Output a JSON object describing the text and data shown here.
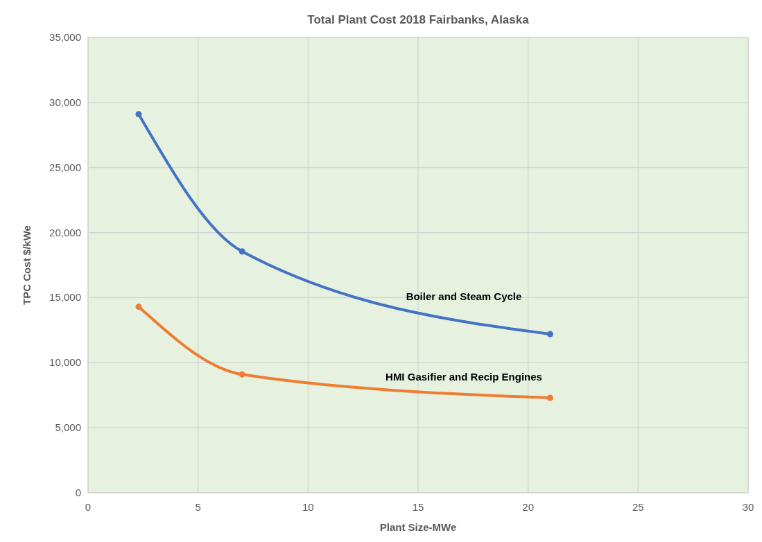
{
  "chart_data": {
    "type": "line",
    "title": "Total Plant Cost 2018 Fairbanks, Alaska",
    "xlabel": "Plant Size-MWe",
    "ylabel": "TPC Cost $/kWe",
    "x": [
      2.3,
      7,
      21
    ],
    "series": [
      {
        "name": "Boiler and Steam Cycle",
        "color": "#4472c4",
        "values": [
          29100,
          18550,
          12200
        ]
      },
      {
        "name": "HMI Gasifier and Recip Engines",
        "color": "#ed7d31",
        "values": [
          14300,
          9100,
          7300
        ]
      }
    ],
    "xlim": [
      0,
      30
    ],
    "xticks": [
      0,
      5,
      10,
      15,
      20,
      25,
      30
    ],
    "ylim": [
      0,
      35000
    ],
    "yticks": [
      {
        "value": 0,
        "label": "0"
      },
      {
        "value": 5000,
        "label": "5,000"
      },
      {
        "value": 10000,
        "label": "10,000"
      },
      {
        "value": 15000,
        "label": "15,000"
      },
      {
        "value": 20000,
        "label": "20,000"
      },
      {
        "value": 25000,
        "label": "25,000"
      },
      {
        "value": 30000,
        "label": "30,000"
      },
      {
        "value": 35000,
        "label": "35,000"
      }
    ],
    "grid": true,
    "marker": "circle",
    "line_style": "solid"
  }
}
